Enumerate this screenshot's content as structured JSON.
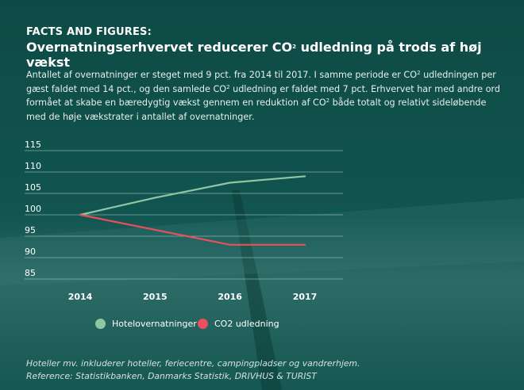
{
  "header": {
    "kicker": "FACTS AND FIGURES:",
    "title_pre": "Overnatningserhvervet reducerer CO",
    "title_sup": "2",
    "title_post": " udledning på trods af høj vækst"
  },
  "body": {
    "p1": "Antallet af overnatninger er steget med 9 pct. fra 2014 til 2017. I samme periode er CO",
    "sup1": "2",
    "p2": " udledningen per gæst faldet med 14 pct., og den samlede CO",
    "sup2": "2",
    "p3": " udledning er faldet med 7 pct. Erhvervet har med andre ord formået at skabe en bæredygtig vækst gennem en reduktion af CO",
    "sup3": "2",
    "p4": " både totalt og relativt sideløbende med de høje vækstrater i antallet af overnatninger."
  },
  "chart_data": {
    "type": "line",
    "x": [
      "2014",
      "2015",
      "2016",
      "2017"
    ],
    "series": [
      {
        "name": "Hotelovernatninger",
        "values": [
          100,
          104,
          107.5,
          109
        ],
        "color": "#8fc7a2"
      },
      {
        "name": "CO2 udledning",
        "values": [
          100,
          96.5,
          93,
          93
        ],
        "color": "#e8505b"
      }
    ],
    "yticks": [
      85,
      90,
      95,
      100,
      105,
      110,
      115
    ],
    "ylim": [
      85,
      115
    ],
    "grid": true,
    "legend": "bottom"
  },
  "footnote": {
    "line1": "Hoteller mv. inkluderer hoteller, feriecentre, campingpladser og vandrerhjem.",
    "line2": "Reference: Statistikbanken, Danmarks Statistik, DRIVHUS & TURIST"
  },
  "colors": {
    "grid": "#b9cfcb",
    "axis_text": "#ffffff"
  }
}
